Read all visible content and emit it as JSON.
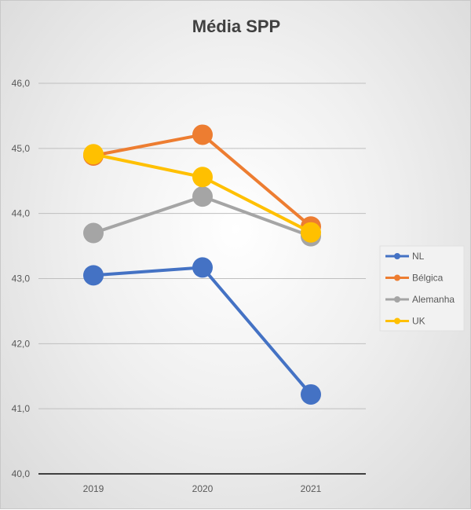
{
  "chart_data": {
    "type": "line",
    "title": "Média SPP",
    "xlabel": "",
    "ylabel": "",
    "categories": [
      "2019",
      "2020",
      "2021"
    ],
    "ylim": [
      40,
      46
    ],
    "yticks": [
      "40,0",
      "41,0",
      "42,0",
      "43,0",
      "44,0",
      "45,0",
      "46,0"
    ],
    "grid": true,
    "legend_position": "right",
    "series": [
      {
        "name": "NL",
        "color": "#4472C4",
        "values": [
          43.05,
          43.17,
          41.22
        ]
      },
      {
        "name": "Bélgica",
        "color": "#ED7D31",
        "values": [
          44.89,
          45.21,
          43.8
        ]
      },
      {
        "name": "Alemanha",
        "color": "#A5A5A5",
        "values": [
          43.7,
          44.26,
          43.65
        ]
      },
      {
        "name": "UK",
        "color": "#FFC000",
        "values": [
          44.91,
          44.56,
          43.71
        ]
      }
    ]
  }
}
